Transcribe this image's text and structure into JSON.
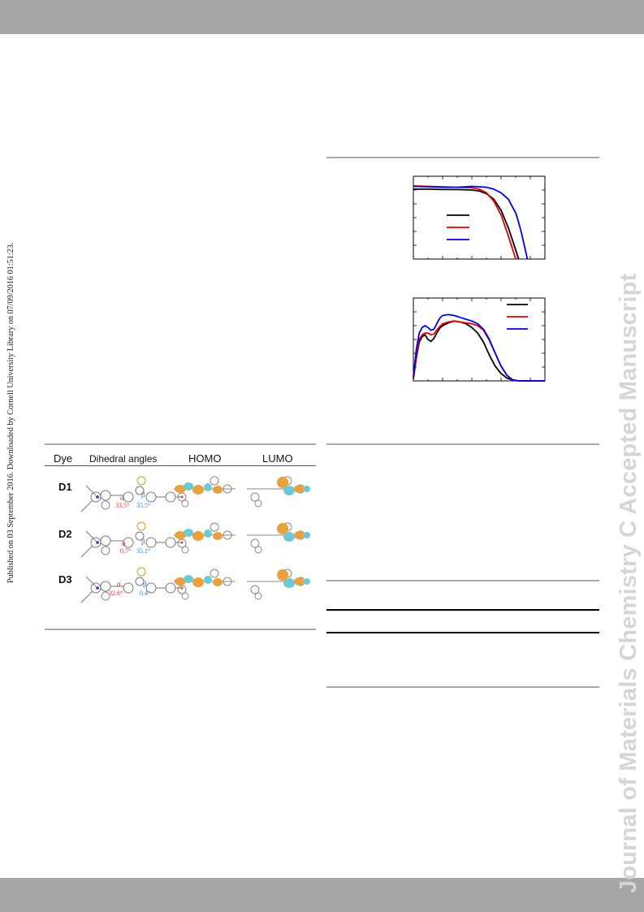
{
  "sidebar": {
    "journal_watermark": "Journal of Materials Chemistry C Accepted Manuscript",
    "published_note": "Published on 03 September 2016. Downloaded by Cornell University Library on 07/09/2016 01:51:23."
  },
  "dye_table": {
    "headers": [
      "Dye",
      "Dihedral angles",
      "HOMO",
      "LUMO"
    ],
    "rows": [
      {
        "dye": "D1",
        "alpha": "33.5°",
        "beta": "35.5°"
      },
      {
        "dye": "D2",
        "alpha": "0.7°",
        "beta": "35.1°"
      },
      {
        "dye": "D3",
        "alpha": "32.6°",
        "beta": "0.4°"
      }
    ],
    "alpha_symbol": "α",
    "beta_symbol": "β"
  },
  "chart_data": [
    {
      "type": "line",
      "xlim": [
        0,
        0.9
      ],
      "ylim": [
        0,
        18
      ],
      "x": [
        0,
        0.1,
        0.2,
        0.3,
        0.4,
        0.45,
        0.5,
        0.55,
        0.6,
        0.65,
        0.7,
        0.72,
        0.74,
        0.76,
        0.78
      ],
      "series": [
        {
          "color": "#000000",
          "values": [
            15.2,
            15.2,
            15.1,
            15.1,
            15.0,
            14.8,
            14.2,
            13.0,
            10.6,
            6.8,
            2.0,
            0.0,
            null,
            null,
            null
          ]
        },
        {
          "color": "#e00000",
          "values": [
            15.9,
            15.8,
            15.7,
            15.6,
            15.5,
            15.2,
            14.4,
            12.6,
            9.6,
            5.0,
            0.0,
            null,
            null,
            null,
            null
          ]
        },
        {
          "color": "#0000e0",
          "values": [
            15.8,
            15.7,
            15.6,
            15.6,
            15.8,
            15.7,
            15.6,
            15.2,
            14.4,
            13.0,
            10.0,
            8.0,
            5.6,
            2.8,
            0.0
          ]
        }
      ],
      "legend_placement": "middle-left",
      "grid": false
    },
    {
      "type": "line",
      "xlim": [
        300,
        750
      ],
      "ylim": [
        0,
        90
      ],
      "x": [
        300,
        310,
        320,
        330,
        340,
        350,
        360,
        370,
        380,
        390,
        400,
        420,
        440,
        460,
        480,
        500,
        520,
        540,
        560,
        580,
        600,
        620,
        640,
        660,
        680,
        700,
        720,
        740,
        750
      ],
      "series": [
        {
          "color": "#000000",
          "values": [
            2,
            25,
            42,
            48,
            50,
            45,
            43,
            46,
            52,
            57,
            60,
            63,
            65,
            64,
            62,
            58,
            52,
            42,
            28,
            16,
            8,
            3,
            1,
            0,
            0,
            0,
            0,
            0,
            0
          ]
        },
        {
          "color": "#e00000",
          "values": [
            3,
            28,
            45,
            50,
            52,
            52,
            50,
            51,
            55,
            59,
            62,
            64,
            65,
            64,
            63,
            62,
            60,
            55,
            44,
            30,
            16,
            6,
            1,
            0,
            0,
            0,
            0,
            0,
            0
          ]
        },
        {
          "color": "#0000e0",
          "values": [
            4,
            34,
            52,
            58,
            60,
            58,
            55,
            56,
            62,
            68,
            71,
            72,
            71,
            69,
            67,
            65,
            62,
            56,
            45,
            30,
            16,
            6,
            1,
            0,
            0,
            0,
            0,
            0,
            0
          ]
        }
      ],
      "legend_placement": "top-right",
      "grid": false
    }
  ]
}
